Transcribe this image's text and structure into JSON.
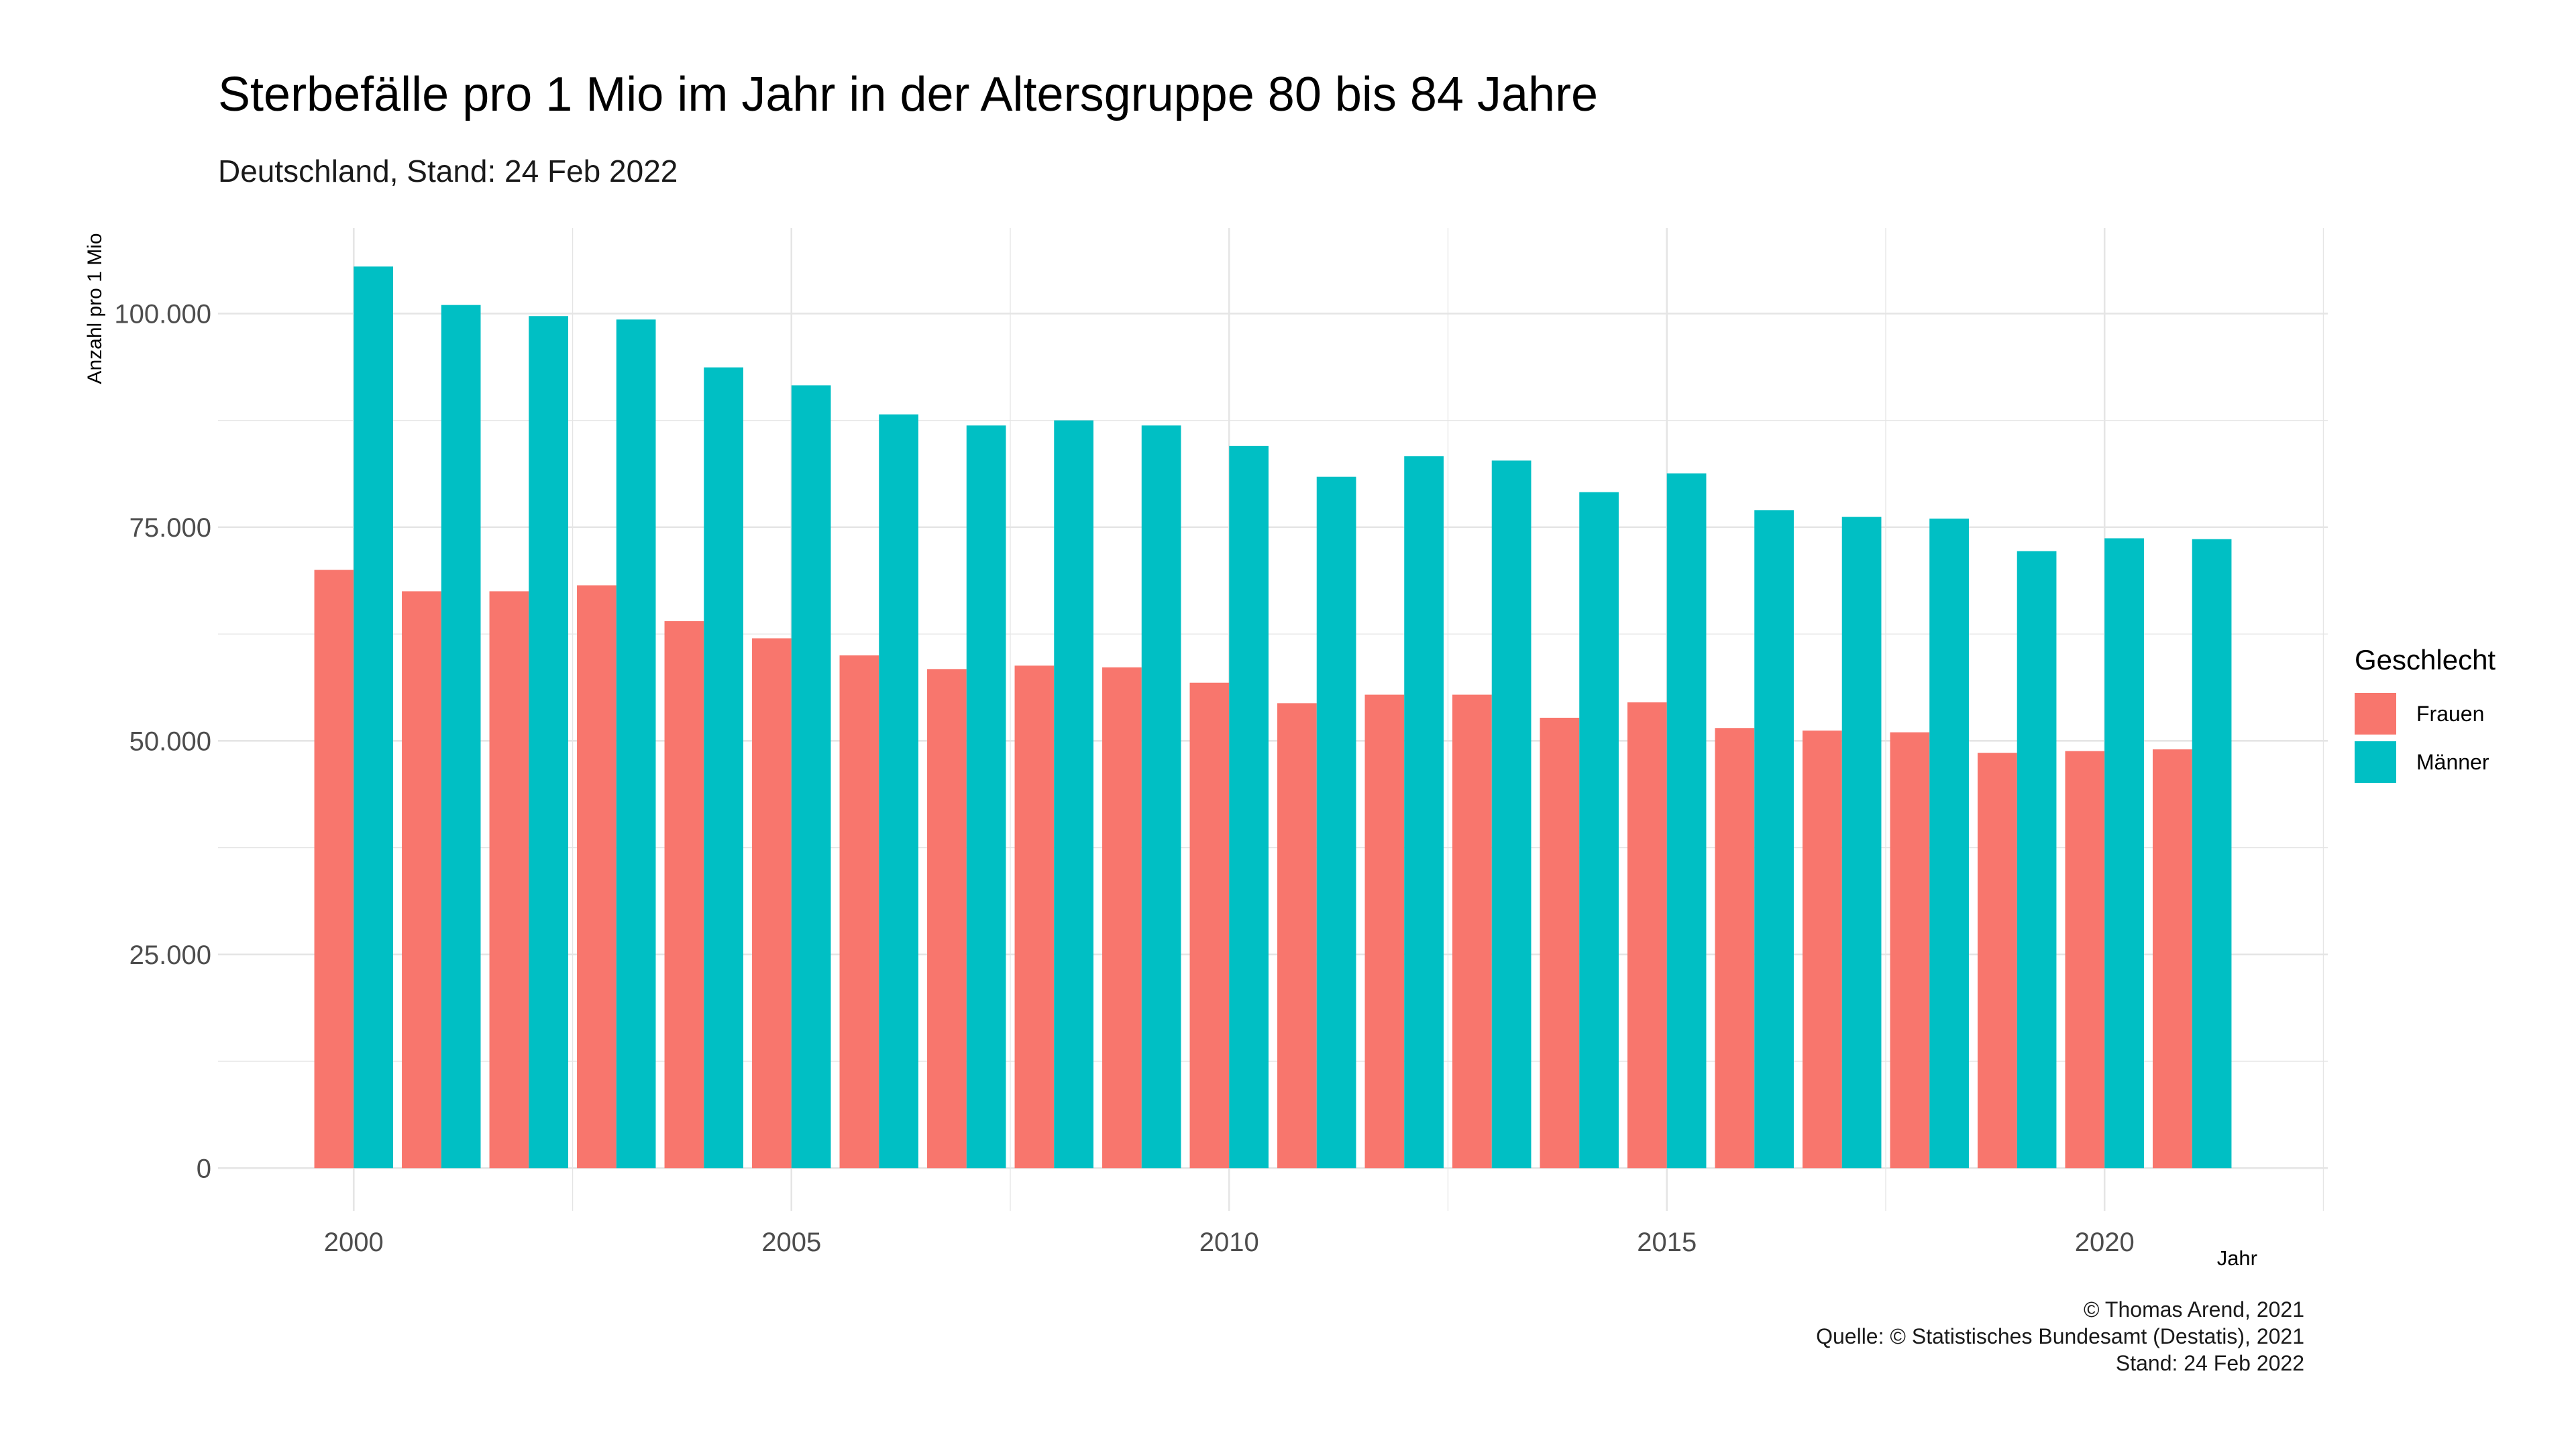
{
  "chart_data": {
    "type": "bar",
    "title": "Sterbefälle pro 1 Mio im Jahr in der Altersgruppe 80 bis 84 Jahre",
    "subtitle": "Deutschland, Stand: 24 Feb 2022",
    "xlabel": "Jahr",
    "ylabel": "Anzahl pro 1 Mio",
    "legend_title": "Geschlecht",
    "legend_position": "right",
    "grid": true,
    "x": [
      2000,
      2001,
      2002,
      2003,
      2004,
      2005,
      2006,
      2007,
      2008,
      2009,
      2010,
      2011,
      2012,
      2013,
      2014,
      2015,
      2016,
      2017,
      2018,
      2019,
      2020,
      2021
    ],
    "xlim": [
      1998.45,
      2022.55
    ],
    "x_ticks": [
      2000,
      2005,
      2010,
      2015,
      2020
    ],
    "x_tick_labels": [
      "2000",
      "2005",
      "2010",
      "2015",
      "2020"
    ],
    "ylim": [
      -5000,
      110000
    ],
    "y_ticks": [
      0,
      25000,
      50000,
      75000,
      100000
    ],
    "y_tick_labels": [
      "0",
      "25.000",
      "50.000",
      "75.000",
      "100.000"
    ],
    "series": [
      {
        "name": "Frauen",
        "color": "#F8766D",
        "values": [
          70000,
          67500,
          67500,
          68200,
          64000,
          62000,
          60000,
          58400,
          58800,
          58600,
          56800,
          54400,
          55400,
          55400,
          52700,
          54500,
          51500,
          51200,
          51000,
          48600,
          48800,
          49000
        ]
      },
      {
        "name": "Männer",
        "color": "#00BFC4",
        "values": [
          105500,
          101000,
          99700,
          99300,
          93700,
          91600,
          88200,
          86900,
          87500,
          86900,
          84500,
          80900,
          83300,
          82800,
          79100,
          81300,
          77000,
          76200,
          76000,
          72200,
          73700,
          73600
        ]
      }
    ]
  },
  "caption": {
    "lines": [
      "© Thomas Arend, 2021",
      "Quelle: © Statistisches Bundesamt (Destatis), 2021",
      "Stand: 24 Feb 2022"
    ]
  },
  "colors": {
    "grid": "#e5e5e5",
    "tick_text": "#4d4d4d"
  }
}
